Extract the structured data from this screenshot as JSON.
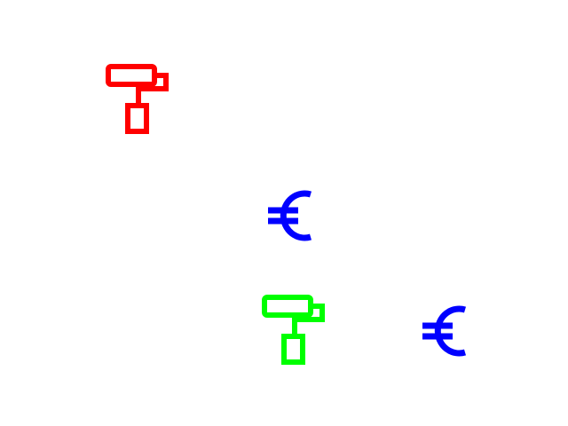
{
  "icons": [
    {
      "name": "paint-roller-icon",
      "color": "#ff0000"
    },
    {
      "name": "euro-icon",
      "color": "#0000ff"
    },
    {
      "name": "paint-roller-icon",
      "color": "#00ff00"
    },
    {
      "name": "euro-icon",
      "color": "#0000ff"
    }
  ]
}
